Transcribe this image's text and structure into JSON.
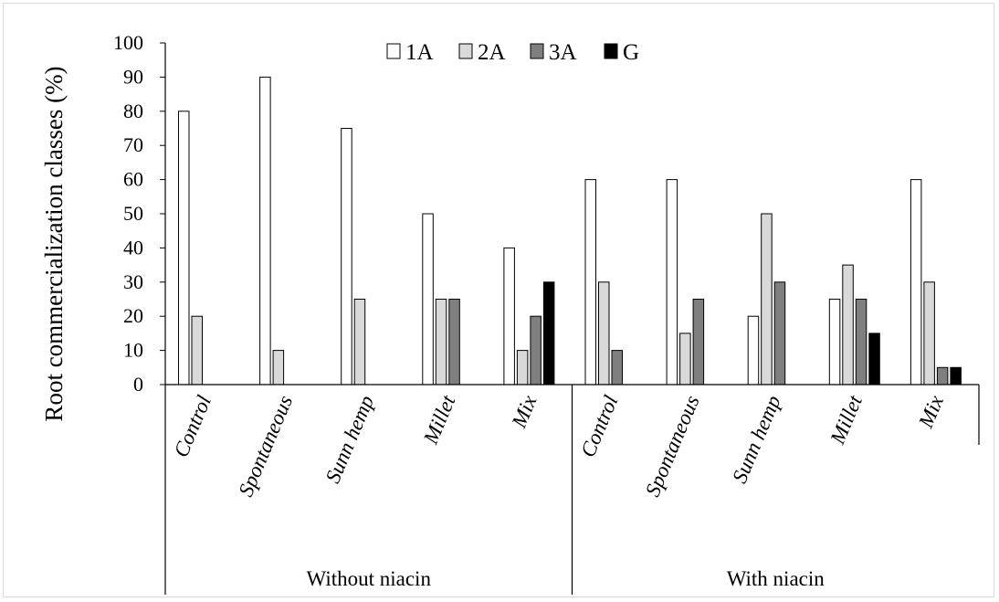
{
  "chart_data": {
    "type": "bar",
    "ylabel": "Root commercialization classes (%)",
    "xlabel": "",
    "ylim": [
      0,
      100
    ],
    "yticks": [
      0,
      10,
      20,
      30,
      40,
      50,
      60,
      70,
      80,
      90,
      100
    ],
    "legend_position": "top",
    "groups": [
      {
        "name": "Without niacin",
        "categories": [
          "Control",
          "Spontaneous",
          "Sunn hemp",
          "Millet",
          "Mix"
        ]
      },
      {
        "name": "With niacin",
        "categories": [
          "Control",
          "Spontaneous",
          "Sunn hemp",
          "Millet",
          "Mix"
        ]
      }
    ],
    "categories": [
      "Control",
      "Spontaneous",
      "Sunn hemp",
      "Millet",
      "Mix",
      "Control",
      "Spontaneous",
      "Sunn hemp",
      "Millet",
      "Mix"
    ],
    "series": [
      {
        "name": "1A",
        "color": "#ffffff",
        "values": [
          80,
          90,
          75,
          50,
          40,
          60,
          60,
          20,
          25,
          60
        ]
      },
      {
        "name": "2A",
        "color": "#d9d9d9",
        "values": [
          20,
          10,
          25,
          25,
          10,
          30,
          15,
          50,
          35,
          30
        ]
      },
      {
        "name": "3A",
        "color": "#7f7f7f",
        "values": [
          0,
          0,
          0,
          25,
          20,
          10,
          25,
          30,
          25,
          5
        ]
      },
      {
        "name": "G",
        "color": "#000000",
        "values": [
          0,
          0,
          0,
          0,
          30,
          0,
          0,
          0,
          15,
          5
        ]
      }
    ]
  }
}
